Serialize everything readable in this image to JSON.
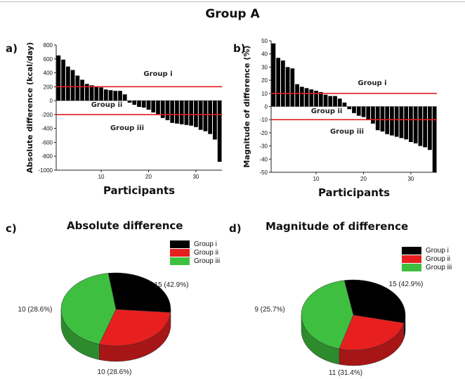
{
  "figure": {
    "title": "Group A",
    "panel_a": "a)",
    "panel_b": "b)",
    "panel_c": "c)",
    "panel_d": "d)"
  },
  "chart_data": [
    {
      "type": "bar",
      "panel": "a)",
      "ylabel": "Absolute difference (kcal/day)",
      "xlabel": "Participants",
      "ylim": [
        -1000,
        800
      ],
      "yticks": [
        800,
        600,
        400,
        200,
        0,
        -200,
        -400,
        -600,
        -800,
        -1000
      ],
      "xlim": [
        0.5,
        35.5
      ],
      "xticks": [
        10,
        20,
        30
      ],
      "values": [
        650,
        590,
        490,
        440,
        360,
        300,
        240,
        220,
        200,
        190,
        160,
        150,
        140,
        140,
        90,
        -30,
        -60,
        -90,
        -100,
        -130,
        -170,
        -200,
        -250,
        -280,
        -320,
        -330,
        -340,
        -350,
        -360,
        -380,
        -420,
        -440,
        -480,
        -560,
        -880
      ],
      "reference_lines": [
        {
          "y": 200,
          "color": "#e02020"
        },
        {
          "y": -200,
          "color": "#e02020"
        }
      ],
      "annotations": [
        "Group i",
        "Group ii",
        "Group iii"
      ],
      "bar_color": "#000000"
    },
    {
      "type": "bar",
      "panel": "b)",
      "ylabel": "Magnitude of difference (%)",
      "xlabel": "Participants",
      "ylim": [
        -50,
        50
      ],
      "yticks": [
        50,
        40,
        30,
        20,
        10,
        0,
        -10,
        -20,
        -30,
        -40,
        -50
      ],
      "xlim": [
        0.5,
        35.5
      ],
      "xticks": [
        10,
        20,
        30
      ],
      "values": [
        48,
        37,
        35,
        30,
        29,
        17,
        15,
        14,
        13,
        12,
        11,
        9,
        8,
        8,
        6,
        3,
        -2,
        -5,
        -7,
        -8,
        -10,
        -13,
        -18,
        -19,
        -21,
        -22,
        -23,
        -24,
        -25,
        -27,
        -28,
        -30,
        -31,
        -33,
        -50
      ],
      "reference_lines": [
        {
          "y": 10,
          "color": "#e02020"
        },
        {
          "y": -10,
          "color": "#e02020"
        }
      ],
      "annotations": [
        "Group i",
        "Group ii",
        "Group iii"
      ],
      "bar_color": "#000000"
    },
    {
      "type": "pie",
      "panel": "c)",
      "title": "Absolute difference",
      "slices": [
        {
          "label": "Group i",
          "value": 10,
          "text": "10 (28.6%)",
          "color": "#000000"
        },
        {
          "label": "Group ii",
          "value": 10,
          "text": "10 (28.6%)",
          "color": "#e81f1f"
        },
        {
          "label": "Group iii",
          "value": 15,
          "text": "15 (42.9%)",
          "color": "#3fbf3f"
        }
      ],
      "legend": "top-right"
    },
    {
      "type": "pie",
      "panel": "d)",
      "title": "Magnitude of difference",
      "slices": [
        {
          "label": "Group i",
          "value": 11,
          "text": "11 (31.4%)",
          "color": "#000000"
        },
        {
          "label": "Group ii",
          "value": 9,
          "text": "9 (25.7%)",
          "color": "#e81f1f"
        },
        {
          "label": "Group iii",
          "value": 15,
          "text": "15 (42.9%)",
          "color": "#3fbf3f"
        }
      ],
      "legend": "top-right"
    }
  ]
}
